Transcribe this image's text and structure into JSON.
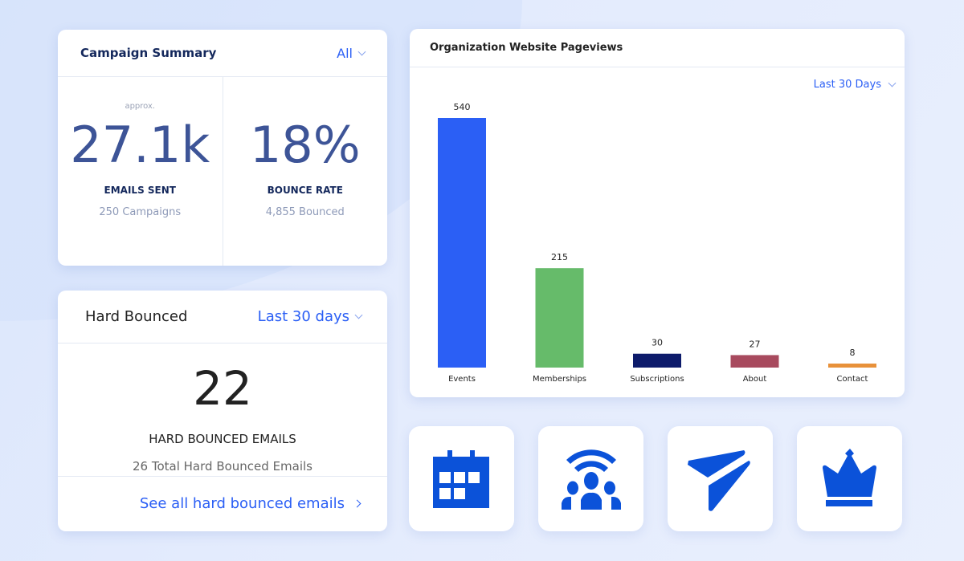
{
  "campaign_summary": {
    "title": "Campaign Summary",
    "filter": "All",
    "emails": {
      "approx": "approx.",
      "value": "27.1k",
      "label": "EMAILS SENT",
      "sub": "250 Campaigns"
    },
    "bounce": {
      "value": "18%",
      "label": "BOUNCE RATE",
      "sub": "4,855 Bounced"
    }
  },
  "hard_bounced": {
    "title": "Hard Bounced",
    "filter": "Last 30 days",
    "value": "22",
    "label": "HARD BOUNCED EMAILS",
    "sub": "26 Total Hard Bounced Emails",
    "link": "See all hard bounced emails"
  },
  "pageviews": {
    "title": "Organization Website Pageviews",
    "filter": "Last 30 Days"
  },
  "chart_data": {
    "type": "bar",
    "categories": [
      "Events",
      "Memberships",
      "Subscriptions",
      "About",
      "Contact"
    ],
    "values": [
      540,
      215,
      30,
      27,
      8
    ],
    "colors": [
      "#2b5ff5",
      "#66bb6a",
      "#0d1b6b",
      "#a84a5e",
      "#e8913a"
    ],
    "grid": false
  },
  "tiles": [
    {
      "icon": "calendar-icon"
    },
    {
      "icon": "community-broadcast-icon"
    },
    {
      "icon": "paper-plane-icon"
    },
    {
      "icon": "crown-icon"
    }
  ],
  "accent": "#0b52d9"
}
